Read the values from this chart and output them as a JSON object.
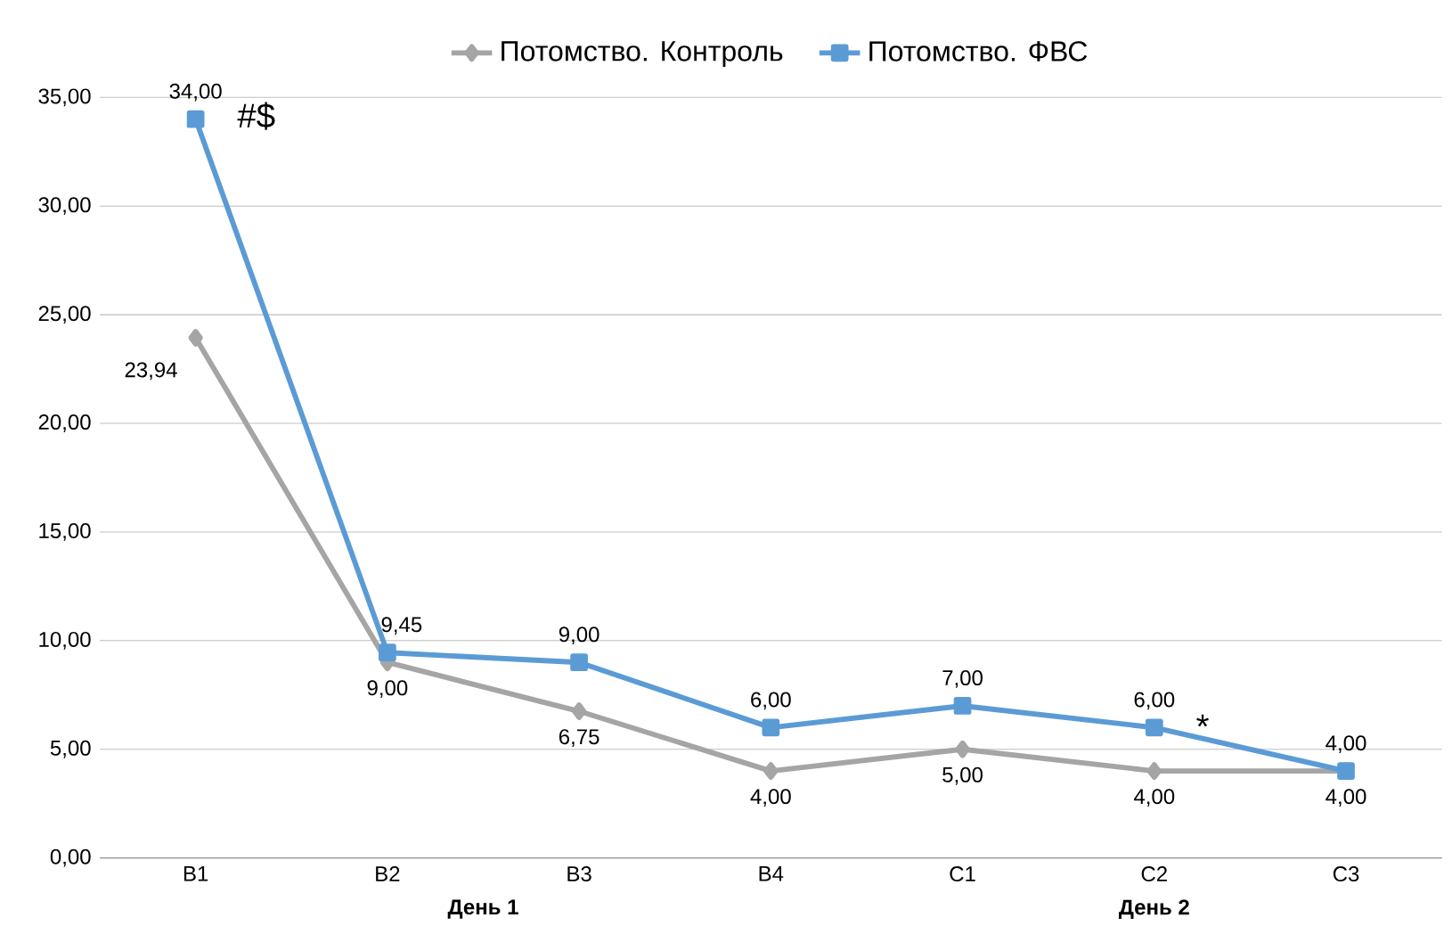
{
  "chart_data": {
    "type": "line",
    "categories": [
      "B1",
      "B2",
      "B3",
      "B4",
      "C1",
      "C2",
      "C3"
    ],
    "series": [
      {
        "name": "Потомство. Контроль",
        "color": "#a5a5a5",
        "marker": "diamond",
        "values": [
          23.94,
          9,
          6.75,
          4,
          5,
          4,
          4
        ],
        "value_labels": [
          "23,94",
          "9,00",
          "6,75",
          "4,00",
          "5,00",
          "4,00",
          "4,00"
        ]
      },
      {
        "name": "Потомство. ФВС",
        "color": "#5b9bd5",
        "marker": "square",
        "values": [
          34,
          9.45,
          9,
          6,
          7,
          6,
          4
        ],
        "value_labels": [
          "34,00",
          "9,45",
          "9,00",
          "6,00",
          "7,00",
          "6,00",
          "4,00"
        ]
      }
    ],
    "ylim": [
      0,
      35
    ],
    "yticks": [
      {
        "value": 0,
        "label": "0,00"
      },
      {
        "value": 5,
        "label": "5,00"
      },
      {
        "value": 10,
        "label": "10,00"
      },
      {
        "value": 15,
        "label": "15,00"
      },
      {
        "value": 20,
        "label": "20,00"
      },
      {
        "value": 25,
        "label": "25,00"
      },
      {
        "value": 30,
        "label": "30,00"
      },
      {
        "value": 35,
        "label": "35,00"
      }
    ],
    "grid": "y",
    "legend": "top",
    "line_style": "solid",
    "annotations": [
      {
        "text": "#$",
        "x": "B1",
        "y": 34
      },
      {
        "text": "*",
        "x": "C2",
        "y": 6
      },
      "День 1",
      "День 2"
    ]
  }
}
